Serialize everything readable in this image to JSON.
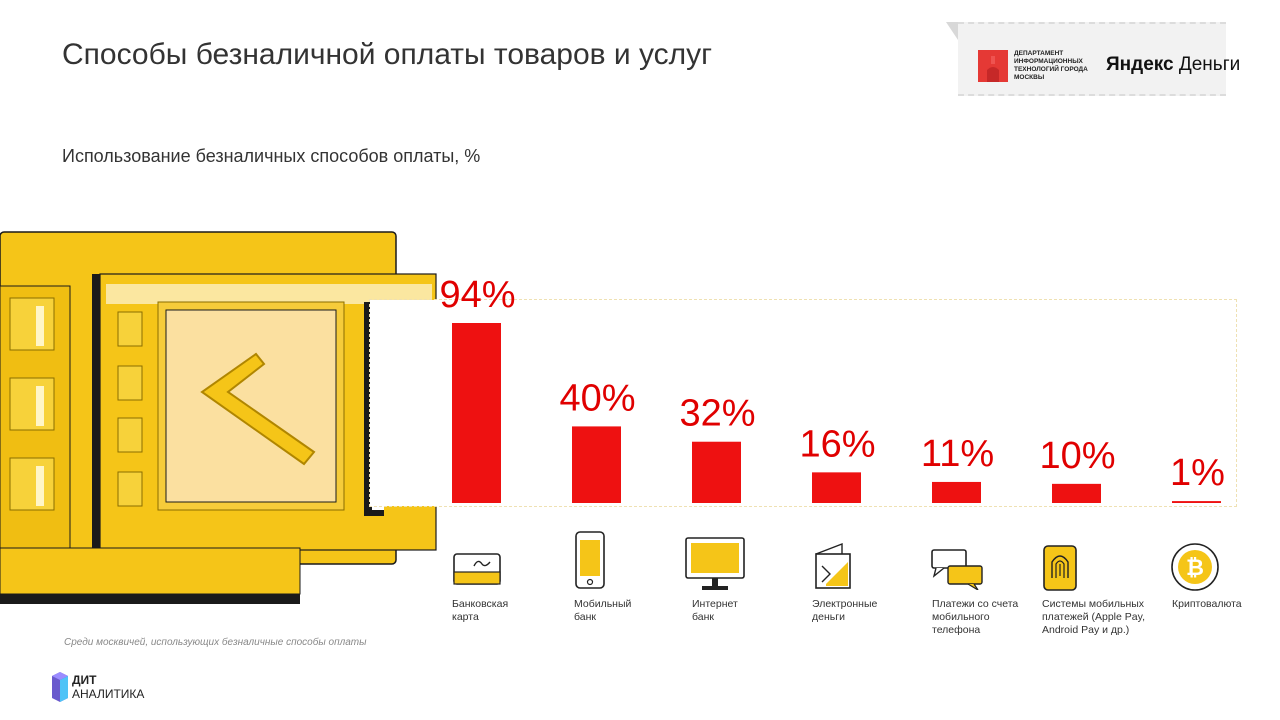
{
  "header": {
    "title": "Способы безналичной оплаты товаров и услуг",
    "subtitle": "Использование безналичных способов оплаты, %"
  },
  "logos": {
    "dit_text": "Департамент информационных технологий города Москвы",
    "yandex_brand": "Яндекс",
    "yandex_product": "Деньги"
  },
  "colors": {
    "bar": "#ee1111",
    "value_text": "#e00000",
    "illustration_yellow": "#f5c518",
    "icon_yellow": "#f5c518"
  },
  "chart_data": {
    "type": "bar",
    "categories": [
      "Банковская карта",
      "Мобильный банк",
      "Интернет банк",
      "Электронные деньги",
      "Платежи со счета мобильного телефона",
      "Системы мобильных платежей (Apple Pay, Android Pay и др.)",
      "Криптовалюта"
    ],
    "values": [
      94,
      40,
      32,
      16,
      11,
      10,
      1
    ],
    "value_labels": [
      "94%",
      "40%",
      "32%",
      "16%",
      "11%",
      "10%",
      "1%"
    ],
    "ylim": [
      0,
      100
    ],
    "grid": false,
    "legend": "none",
    "icons": [
      "bank-card-icon",
      "mobile-phone-icon",
      "desktop-monitor-icon",
      "e-wallet-icon",
      "chat-bubbles-icon",
      "fingerprint-phone-icon",
      "bitcoin-icon"
    ]
  },
  "labels": [
    [
      "Банковская",
      "карта"
    ],
    [
      "Мобильный",
      "банк"
    ],
    [
      "Интернет",
      "банк"
    ],
    [
      "Электронные",
      "деньги"
    ],
    [
      "Платежи со счета",
      "мобильного",
      "телефона"
    ],
    [
      "Системы мобильных",
      "платежей (Apple Pay,",
      "Android Pay и др.)"
    ],
    [
      "Криптовалюта"
    ]
  ],
  "footnote": "Среди москвичей, использующих безналичные способы оплаты",
  "brand": {
    "line1": "ДИТ",
    "line2": "АНАЛИТИКА"
  }
}
